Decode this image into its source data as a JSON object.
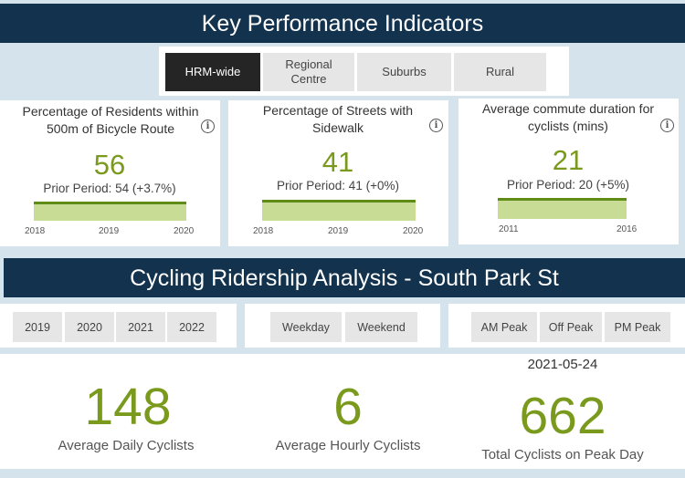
{
  "kpi_section": {
    "title": "Key Performance Indicators"
  },
  "region_tabs": [
    {
      "label": "HRM-wide",
      "active": true
    },
    {
      "label": "Regional Centre",
      "active": false
    },
    {
      "label": "Suburbs",
      "active": false
    },
    {
      "label": "Rural",
      "active": false
    }
  ],
  "kpi_cards": [
    {
      "title": "Percentage of Residents within 500m of Bicycle Route",
      "value": "56",
      "prior": "Prior Period: 54 (+3.7%)",
      "axis": [
        "2018",
        "2019",
        "2020"
      ]
    },
    {
      "title": "Percentage of Streets with Sidewalk",
      "value": "41",
      "prior": "Prior Period: 41 (+0%)",
      "axis": [
        "2018",
        "2019",
        "2020"
      ]
    },
    {
      "title": "Average commute duration for cyclists (mins)",
      "value": "21",
      "prior": "Prior Period: 20 (+5%)",
      "axis": [
        "2011",
        "2016"
      ]
    }
  ],
  "info_icon_glyph": "i",
  "ridership_section": {
    "title": "Cycling Ridership Analysis - South Park St"
  },
  "year_filters": [
    "2019",
    "2020",
    "2021",
    "2022"
  ],
  "day_filters": [
    "Weekday",
    "Weekend"
  ],
  "peak_filters": [
    "AM Peak",
    "Off Peak",
    "PM Peak"
  ],
  "stats": {
    "avg_daily": {
      "value": "148",
      "label": "Average Daily Cyclists"
    },
    "avg_hourly": {
      "value": "6",
      "label": "Average Hourly Cyclists"
    },
    "peak_day": {
      "date": "2021-05-24",
      "value": "662",
      "label": "Total Cyclists on Peak Day"
    }
  },
  "colors": {
    "banner": "#12324e",
    "accent_green": "#7a9a1d",
    "spark_line": "#5f8c17",
    "spark_fill": "#c8dc96",
    "page_bg": "#d5e4ec"
  }
}
